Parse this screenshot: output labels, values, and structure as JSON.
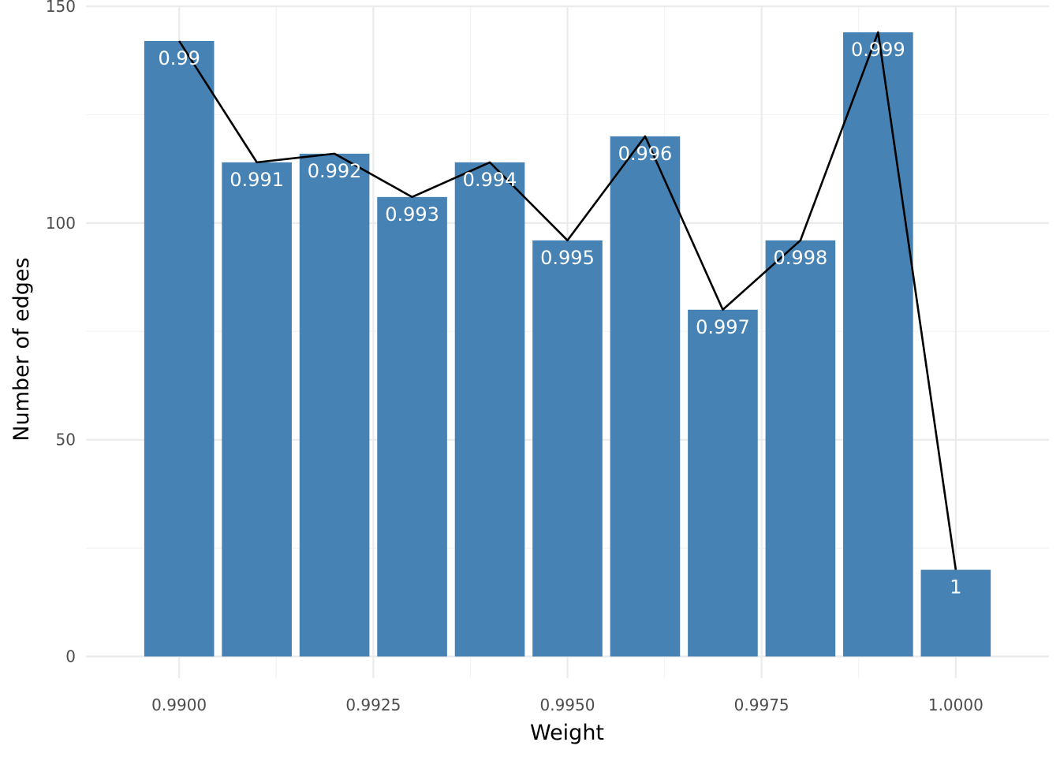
{
  "chart_data": {
    "type": "bar",
    "xlabel": "Weight",
    "ylabel": "Number of edges",
    "xlim": [
      0.9888,
      1.0012
    ],
    "ylim": [
      -5,
      150
    ],
    "x_ticks": [
      0.99,
      0.9925,
      0.995,
      0.9975,
      1.0
    ],
    "x_tick_labels": [
      "0.9900",
      "0.9925",
      "0.9950",
      "0.9975",
      "1.0000"
    ],
    "y_ticks": [
      0,
      50,
      100,
      150
    ],
    "y_tick_labels": [
      "0",
      "50",
      "100",
      "150"
    ],
    "bar_color": "#4682b4",
    "line_color": "#000000",
    "grid": true,
    "bars": [
      {
        "x": 0.99,
        "value": 142,
        "label": "0.99"
      },
      {
        "x": 0.991,
        "value": 114,
        "label": "0.991"
      },
      {
        "x": 0.992,
        "value": 116,
        "label": "0.992"
      },
      {
        "x": 0.993,
        "value": 106,
        "label": "0.993"
      },
      {
        "x": 0.994,
        "value": 114,
        "label": "0.994"
      },
      {
        "x": 0.995,
        "value": 96,
        "label": "0.995"
      },
      {
        "x": 0.996,
        "value": 120,
        "label": "0.996"
      },
      {
        "x": 0.997,
        "value": 80,
        "label": "0.997"
      },
      {
        "x": 0.998,
        "value": 96,
        "label": "0.998"
      },
      {
        "x": 0.999,
        "value": 144,
        "label": "0.999"
      },
      {
        "x": 1.0,
        "value": 20,
        "label": "1"
      }
    ]
  }
}
